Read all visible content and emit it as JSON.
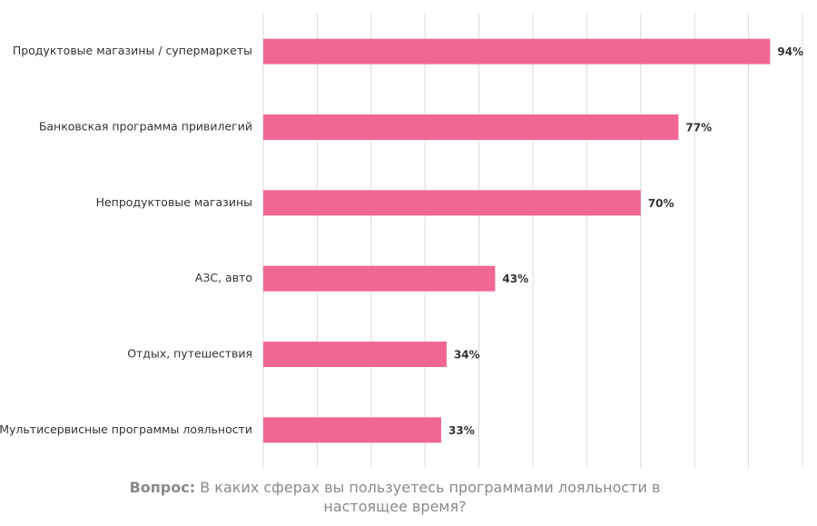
{
  "chart_data": {
    "type": "hbar",
    "categories": [
      "Продуктовые магазины / супермаркеты",
      "Банковская программа привилегий",
      "Непродуктовые магазины",
      "АЗС, авто",
      "Отдых, путешествия",
      "Мультисервисные программы лояльности"
    ],
    "values": [
      94,
      77,
      70,
      43,
      34,
      33
    ],
    "value_labels": [
      "94%",
      "77%",
      "70%",
      "43%",
      "34%",
      "33%"
    ],
    "color": "#f06891",
    "xlim": [
      0,
      100
    ],
    "xticks": [
      0,
      10,
      20,
      30,
      40,
      50,
      60,
      70,
      80,
      90,
      100
    ],
    "grid": true,
    "caption_label": "Вопрос:",
    "caption": "В каких сферах вы пользуетесь программами лояльности в настоящее время?"
  }
}
